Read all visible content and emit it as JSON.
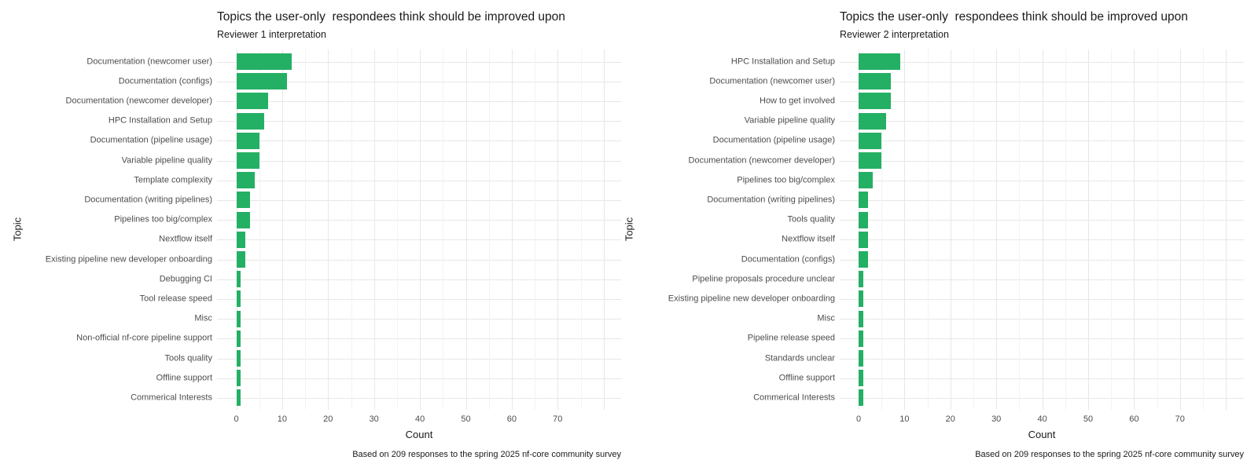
{
  "style": {
    "bar_color": "#24b064",
    "grid_major_color": "#e7e7e7",
    "grid_minor_color": "#f3f3f3",
    "axis_text_color": "#4d4d4d",
    "title_text_color": "#1a1a1a",
    "background": "#ffffff"
  },
  "chart_data": [
    {
      "type": "bar",
      "orientation": "horizontal",
      "title": "Topics the user-only  respondees think should be improved upon",
      "subtitle": "Reviewer 1 interpretation",
      "xlabel": "Count",
      "ylabel": "Topic",
      "caption": "Based on 209 responses to the spring 2025 nf-core community survey",
      "xlim": [
        0,
        80
      ],
      "xticks": [
        0,
        10,
        20,
        30,
        40,
        50,
        60,
        70
      ],
      "grid": true,
      "legend": "none",
      "categories": [
        "Documentation (newcomer user)",
        "Documentation (configs)",
        "Documentation (newcomer developer)",
        "HPC Installation and Setup",
        "Documentation (pipeline usage)",
        "Variable pipeline quality",
        "Template complexity",
        "Documentation (writing pipelines)",
        "Pipelines too big/complex",
        "Nextflow itself",
        "Existing pipeline new developer onboarding",
        "Debugging CI",
        "Tool release speed",
        "Misc",
        "Non-official nf-core pipeline support",
        "Tools quality",
        "Offline support",
        "Commerical Interests"
      ],
      "values": [
        12,
        11,
        7,
        6,
        5,
        5,
        4,
        3,
        3,
        2,
        2,
        1,
        1,
        1,
        1,
        1,
        1,
        1
      ]
    },
    {
      "type": "bar",
      "orientation": "horizontal",
      "title": "Topics the user-only  respondees think should be improved upon",
      "subtitle": "Reviewer 2 interpretation",
      "xlabel": "Count",
      "ylabel": "Topic",
      "caption": "Based on 209 responses to the spring 2025 nf-core community survey",
      "xlim": [
        0,
        80
      ],
      "xticks": [
        0,
        10,
        20,
        30,
        40,
        50,
        60,
        70
      ],
      "grid": true,
      "legend": "none",
      "categories": [
        "HPC Installation and Setup",
        "Documentation (newcomer user)",
        "How to get involved",
        "Variable pipeline quality",
        "Documentation (pipeline usage)",
        "Documentation (newcomer developer)",
        "Pipelines too big/complex",
        "Documentation (writing pipelines)",
        "Tools quality",
        "Nextflow itself",
        "Documentation (configs)",
        "Pipeline proposals procedure unclear",
        "Existing pipeline new developer onboarding",
        "Misc",
        "Pipeline release speed",
        "Standards unclear",
        "Offline support",
        "Commerical Interests"
      ],
      "values": [
        9,
        7,
        7,
        6,
        5,
        5,
        3,
        2,
        2,
        2,
        2,
        1,
        1,
        1,
        1,
        1,
        1,
        1
      ]
    }
  ]
}
